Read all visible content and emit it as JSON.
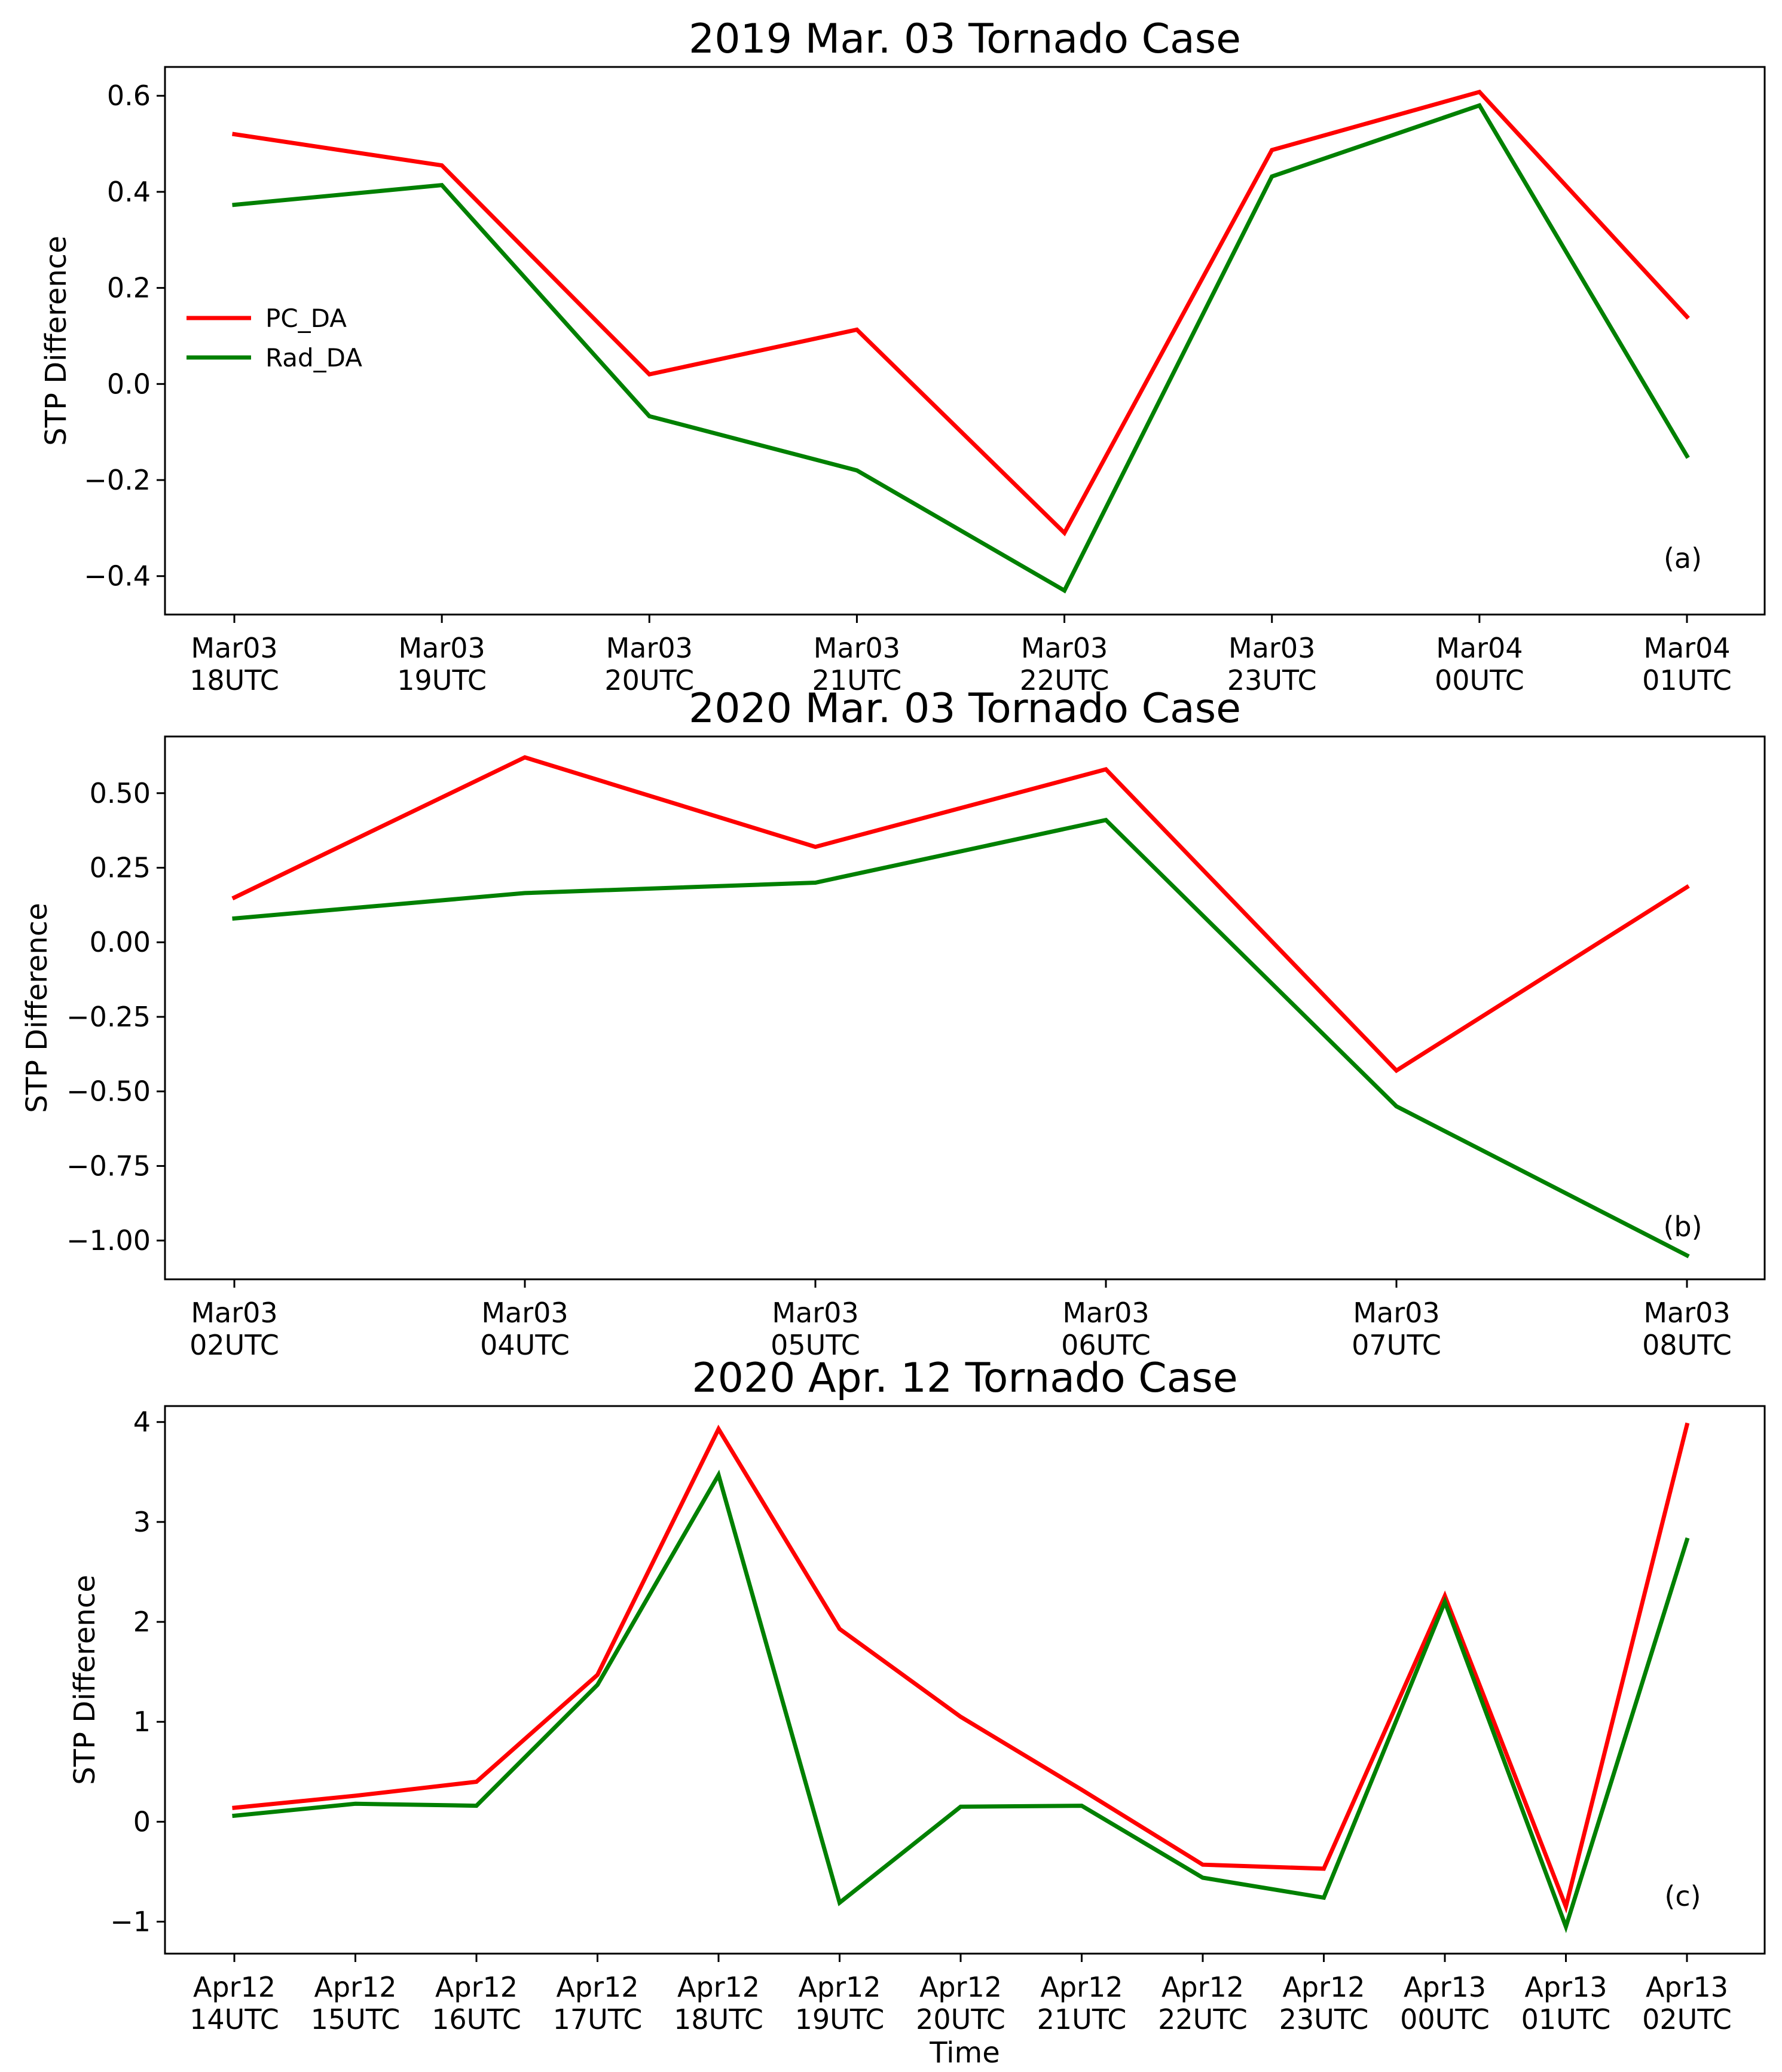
{
  "chart_data": [
    {
      "type": "line",
      "title": "2019 Mar. 03 Tornado Case",
      "xlabel": "",
      "ylabel": "STP Difference",
      "panel_label": "(a)",
      "categories": [
        "Mar03\n18UTC",
        "Mar03\n19UTC",
        "Mar03\n20UTC",
        "Mar03\n21UTC",
        "Mar03\n22UTC",
        "Mar03\n23UTC",
        "Mar04\n00UTC",
        "Mar04\n01UTC"
      ],
      "ylim": [
        -0.48,
        0.66
      ],
      "yticks": [
        -0.4,
        -0.2,
        0.0,
        0.2,
        0.4,
        0.6
      ],
      "ytick_labels": [
        "−0.4",
        "−0.2",
        "0.0",
        "0.2",
        "0.4",
        "0.6"
      ],
      "legend": {
        "position": "center-left"
      },
      "series": [
        {
          "name": "PC_DA",
          "color": "#ff0000",
          "values": [
            0.52,
            0.455,
            0.02,
            0.113,
            -0.31,
            0.487,
            0.608,
            0.14
          ]
        },
        {
          "name": "Rad_DA",
          "color": "#008000",
          "values": [
            0.373,
            0.414,
            -0.067,
            -0.18,
            -0.43,
            0.432,
            0.58,
            -0.15
          ]
        }
      ]
    },
    {
      "type": "line",
      "title": "2020 Mar. 03 Tornado Case",
      "xlabel": "",
      "ylabel": "STP Difference",
      "panel_label": "(b)",
      "categories": [
        "Mar03\n02UTC",
        "Mar03\n04UTC",
        "Mar03\n05UTC",
        "Mar03\n06UTC",
        "Mar03\n07UTC",
        "Mar03\n08UTC"
      ],
      "ylim": [
        -1.13,
        0.69
      ],
      "yticks": [
        -1.0,
        -0.75,
        -0.5,
        -0.25,
        0.0,
        0.25,
        0.5
      ],
      "ytick_labels": [
        "−1.00",
        "−0.75",
        "−0.50",
        "−0.25",
        "0.00",
        "0.25",
        "0.50"
      ],
      "series": [
        {
          "name": "PC_DA",
          "color": "#ff0000",
          "values": [
            0.15,
            0.62,
            0.32,
            0.58,
            -0.43,
            0.185
          ]
        },
        {
          "name": "Rad_DA",
          "color": "#008000",
          "values": [
            0.08,
            0.165,
            0.2,
            0.41,
            -0.55,
            -1.05
          ]
        }
      ]
    },
    {
      "type": "line",
      "title": "2020 Apr. 12 Tornado Case",
      "xlabel": "Time",
      "ylabel": "STP Difference",
      "panel_label": "(c)",
      "categories": [
        "Apr12\n14UTC",
        "Apr12\n15UTC",
        "Apr12\n16UTC",
        "Apr12\n17UTC",
        "Apr12\n18UTC",
        "Apr12\n19UTC",
        "Apr12\n20UTC",
        "Apr12\n21UTC",
        "Apr12\n22UTC",
        "Apr12\n23UTC",
        "Apr13\n00UTC",
        "Apr13\n01UTC",
        "Apr13\n02UTC"
      ],
      "ylim": [
        -1.32,
        4.16
      ],
      "yticks": [
        -1,
        0,
        1,
        2,
        3,
        4
      ],
      "ytick_labels": [
        "−1",
        "0",
        "1",
        "2",
        "3",
        "4"
      ],
      "series": [
        {
          "name": "PC_DA",
          "color": "#ff0000",
          "values": [
            0.14,
            0.26,
            0.4,
            1.47,
            3.93,
            1.93,
            1.05,
            0.32,
            -0.43,
            -0.47,
            2.26,
            -0.85,
            3.97
          ]
        },
        {
          "name": "Rad_DA",
          "color": "#008000",
          "values": [
            0.06,
            0.18,
            0.16,
            1.37,
            3.47,
            -0.81,
            0.15,
            0.16,
            -0.56,
            -0.76,
            2.2,
            -1.05,
            2.82
          ]
        }
      ]
    }
  ]
}
